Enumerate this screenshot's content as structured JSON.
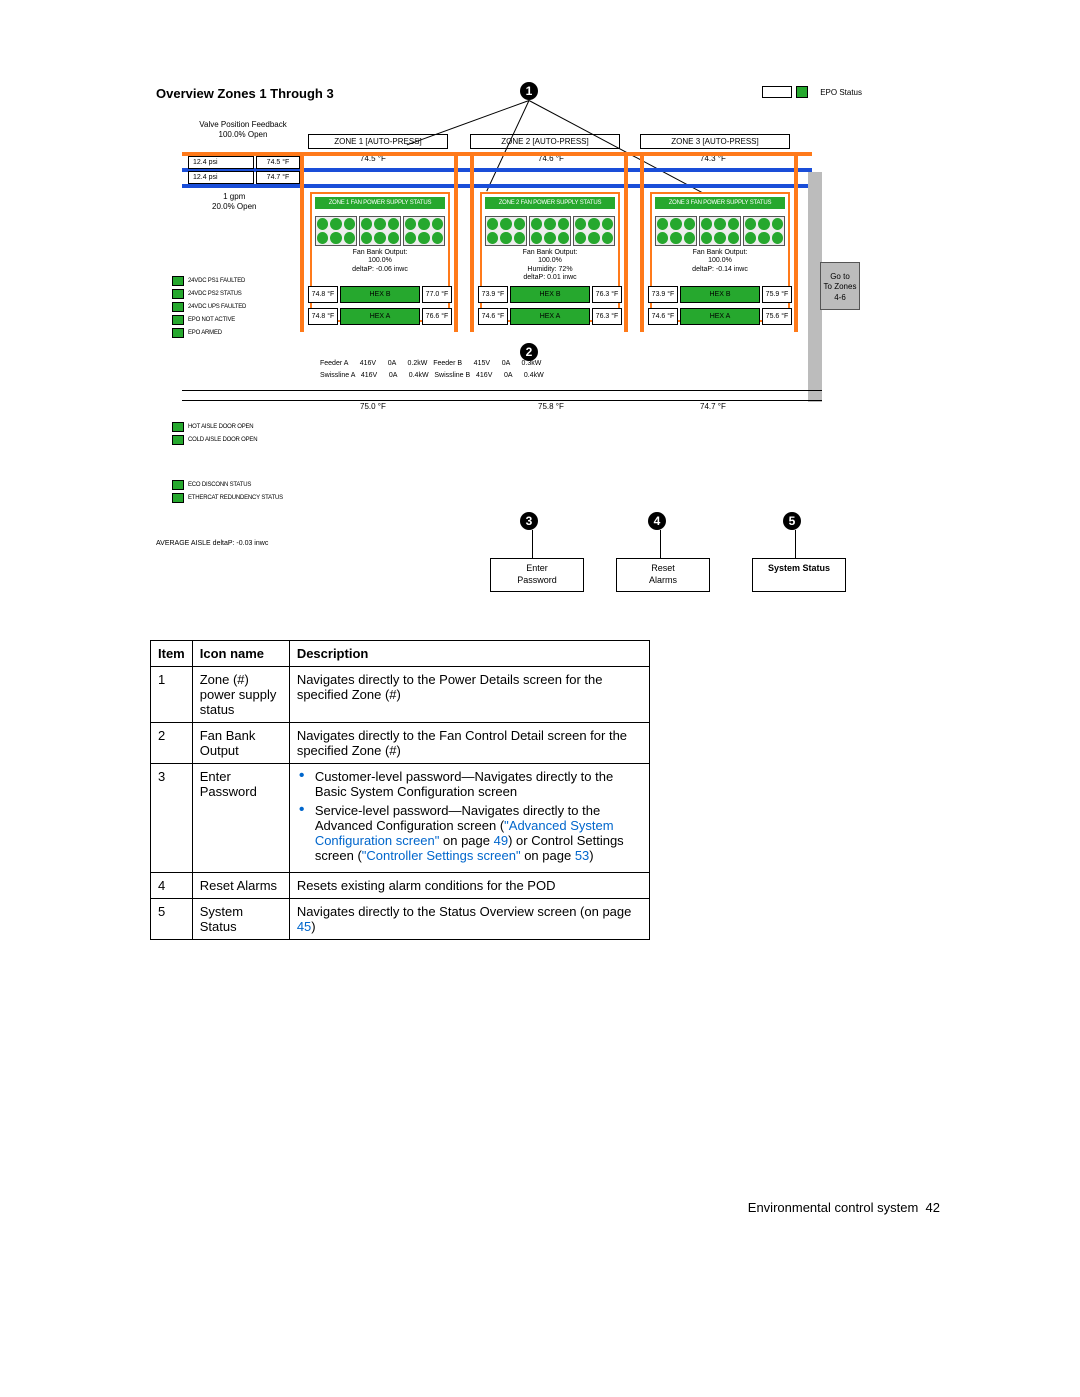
{
  "colors": {
    "green": "#26a82e",
    "orange": "#ff7a1a",
    "blue_pipe": "#1a4ed8",
    "link": "#0066cc",
    "gray_panel": "#bcbcbc",
    "black": "#000000",
    "white": "#ffffff"
  },
  "diagram": {
    "title": "Overview Zones 1 Through 3",
    "epo_status_label": "EPO Status",
    "valve_feedback": {
      "line1": "Valve Position Feedback",
      "line2": "100.0% Open"
    },
    "zone_headers": {
      "z1": "ZONE 1 [AUTO-PRESS]",
      "z2": "ZONE 2 [AUTO-PRESS]",
      "z3": "ZONE 3 [AUTO-PRESS]"
    },
    "top_temps": {
      "z1": "74.5 °F",
      "z2": "74.6 °F",
      "z3": "74.3 °F"
    },
    "supply_rows": {
      "r1_psi": "12.4 psi",
      "r1_t": "74.5 °F",
      "r2_psi": "12.4 psi",
      "r2_t": "74.7 °F"
    },
    "gpm": {
      "line1": "1 gpm",
      "line2": "20.0% Open"
    },
    "zones": [
      {
        "ps_label": "ZONE 1 FAN POWER SUPPLY STATUS",
        "fb_line1": "Fan Bank Output:",
        "fb_line2": "100.0%",
        "fb_line3": "",
        "deltap": "deltaP: -0.06 inwc",
        "hexb_l": "74.8 °F",
        "hexb": "HEX B",
        "hexb_r": "77.0 °F",
        "hexa_l": "74.8 °F",
        "hexa": "HEX A",
        "hexa_r": "76.6 °F"
      },
      {
        "ps_label": "ZONE 2 FAN POWER SUPPLY STATUS",
        "fb_line1": "Fan Bank Output:",
        "fb_line2": "100.0%",
        "fb_line3": "Humidity: 72%",
        "deltap": "deltaP: 0.01 inwc",
        "hexb_l": "73.9 °F",
        "hexb": "HEX B",
        "hexb_r": "76.3 °F",
        "hexa_l": "74.6 °F",
        "hexa": "HEX A",
        "hexa_r": "76.3 °F"
      },
      {
        "ps_label": "ZONE 3 FAN POWER SUPPLY STATUS",
        "fb_line1": "Fan Bank Output:",
        "fb_line2": "100.0%",
        "fb_line3": "",
        "deltap": "deltaP: -0.14 inwc",
        "hexb_l": "73.9 °F",
        "hexb": "HEX B",
        "hexb_r": "75.9 °F",
        "hexa_l": "74.6 °F",
        "hexa": "HEX A",
        "hexa_r": "75.6 °F"
      }
    ],
    "feeders": {
      "row1": "Feeder A      416V      0A      0.2kW   Feeder B      415V      0A      0.3kW",
      "row2": "Swissline A   416V      0A      0.4kW   Swissline B   416V      0A      0.4kW"
    },
    "floor_temps": {
      "z1": "75.0 °F",
      "z2": "75.8 °F",
      "z3": "74.7 °F"
    },
    "left_legend_top": [
      {
        "label": "24VDC PS1 FAULTED"
      },
      {
        "label": "24VDC PS2 STATUS"
      },
      {
        "label": "24VDC UPS FAULTED"
      },
      {
        "label": "EPO NOT ACTIVE"
      },
      {
        "label": "EPO ARMED"
      }
    ],
    "left_legend_mid": [
      {
        "label": "HOT AISLE DOOR OPEN"
      },
      {
        "label": "COLD AISLE DOOR OPEN"
      }
    ],
    "left_legend_low": [
      {
        "label": "ECO DISCONN STATUS"
      },
      {
        "label": "ETHERCAT REDUNDENCY STATUS"
      }
    ],
    "avg_deltap": "AVERAGE AISLE deltaP: -0.03 inwc",
    "go_to_zones": "Go to\nTo Zones\n4-6",
    "bottom_boxes": {
      "b3": "Enter\nPassword",
      "b4": "Reset\nAlarms",
      "b5": "System Status"
    },
    "callouts": [
      "1",
      "2",
      "3",
      "4",
      "5"
    ]
  },
  "table": {
    "headers": {
      "item": "Item",
      "icon": "Icon name",
      "desc": "Description"
    },
    "rows": [
      {
        "n": "1",
        "icon": "Zone (#) power supply status",
        "desc": "Navigates directly to the Power Details screen for the specified Zone (#)"
      },
      {
        "n": "2",
        "icon": "Fan Bank Output",
        "desc": "Navigates directly to the Fan Control Detail screen for the specified Zone (#)"
      },
      {
        "n": "3",
        "icon": "Enter Password",
        "bullets": [
          {
            "pre": "Customer-level password—Navigates directly to the Basic System Configuration screen"
          },
          {
            "pre": "Service-level password—Navigates directly to the Advanced Configuration screen (",
            "link1": "\"Advanced System Configuration screen\"",
            "mid1": " on page ",
            "pg1": "49",
            "mid2": ") or Control Settings screen (",
            "link2": "\"Controller Settings screen\"",
            "mid3": " on page ",
            "pg2": "53",
            "tail": ")"
          }
        ]
      },
      {
        "n": "4",
        "icon": "Reset Alarms",
        "desc": "Resets existing alarm conditions for the POD"
      },
      {
        "n": "5",
        "icon": "System Status",
        "desc_pre": "Navigates directly to the Status Overview screen (on page ",
        "pg": "45",
        "desc_post": ")"
      }
    ]
  },
  "footer": {
    "text": "Environmental control system",
    "page": "42"
  }
}
